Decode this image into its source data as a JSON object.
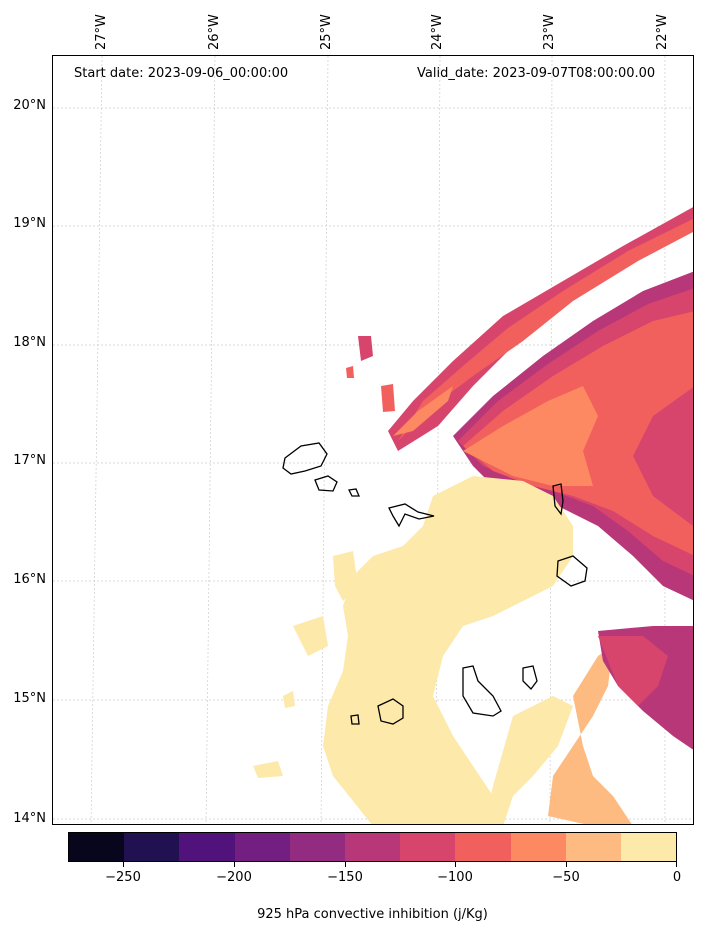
{
  "header": {
    "start_date": "Start date: 2023-09-06_00:00:00",
    "valid_date": "Valid_date: 2023-09-07T08:00:00.00"
  },
  "map": {
    "lon_labels": [
      "27°W",
      "26°W",
      "25°W",
      "24°W",
      "23°W",
      "22°W"
    ],
    "lat_labels": [
      "20°N",
      "19°N",
      "18°N",
      "17°N",
      "16°N",
      "15°N",
      "14°N"
    ],
    "extent": {
      "lon_min": -27.35,
      "lon_max": -21.75,
      "lat_min": 13.95,
      "lat_max": 20.4
    },
    "gridlines": true
  },
  "colorbar": {
    "title": "925 hPa convective inhibition (j/Kg)",
    "tick_labels": [
      "−250",
      "−200",
      "−150",
      "−100",
      "−50",
      "0"
    ],
    "levels": [
      -275,
      -250,
      -225,
      -200,
      -175,
      -150,
      -125,
      -100,
      -75,
      -50,
      -25,
      0
    ],
    "colormap": "magma",
    "colors": [
      "#07061c",
      "#221150",
      "#51127c",
      "#721f81",
      "#932b80",
      "#b73779",
      "#d8456c",
      "#f1605d",
      "#fc8961",
      "#febb81",
      "#fde9a9"
    ]
  }
}
